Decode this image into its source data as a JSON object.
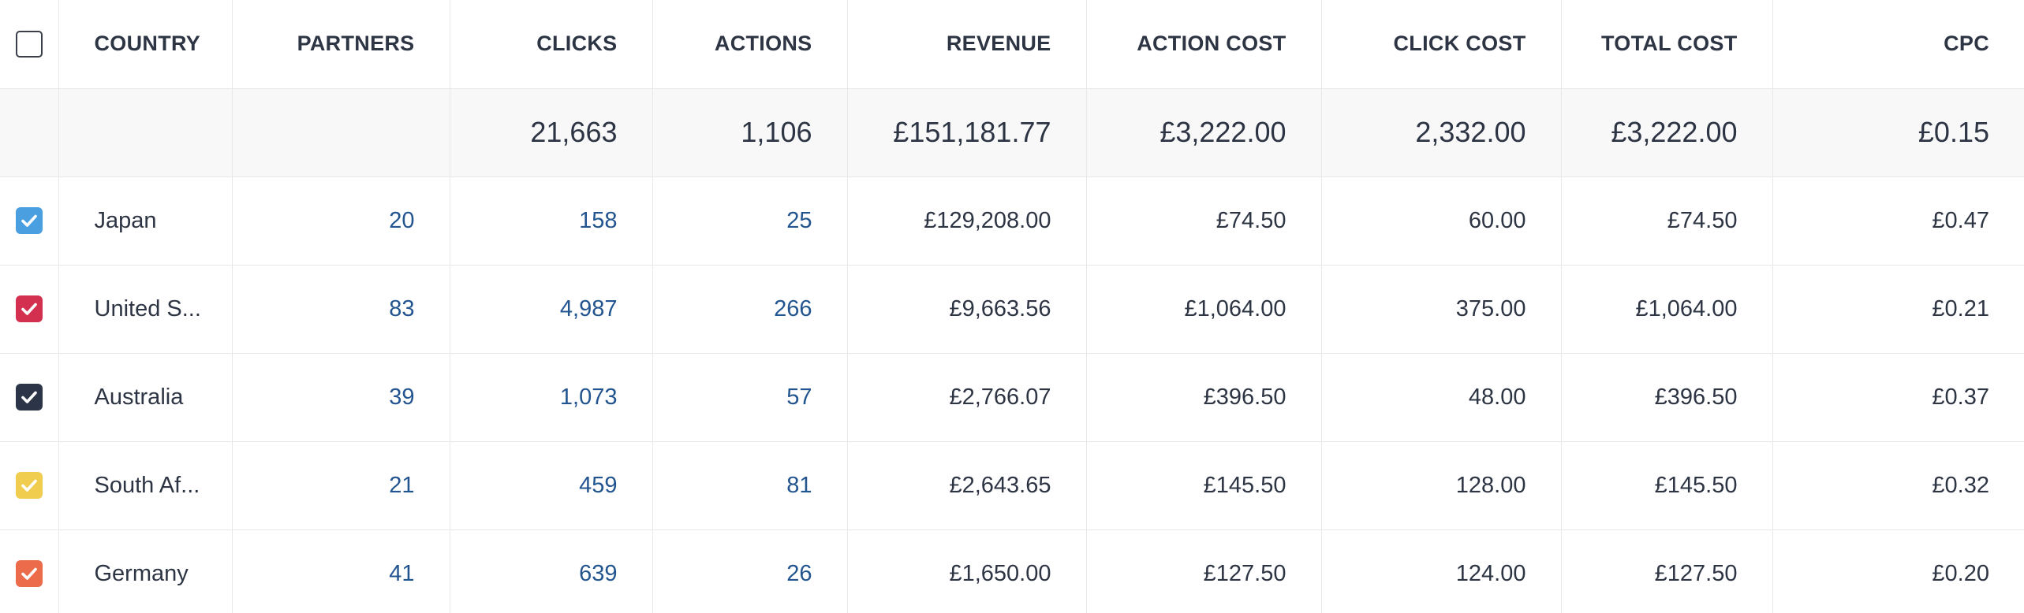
{
  "table": {
    "headers": {
      "country": "COUNTRY",
      "partners": "PARTNERS",
      "clicks": "CLICKS",
      "actions": "ACTIONS",
      "revenue": "REVENUE",
      "action_cost": "ACTION COST",
      "click_cost": "CLICK COST",
      "total_cost": "TOTAL COST",
      "cpc": "CPC"
    },
    "totals": {
      "clicks": "21,663",
      "actions": "1,106",
      "revenue": "£151,181.77",
      "action_cost": "£3,222.00",
      "click_cost": "2,332.00",
      "total_cost": "£3,222.00",
      "cpc": "£0.15"
    },
    "rows": [
      {
        "country": "Japan",
        "partners": "20",
        "clicks": "158",
        "actions": "25",
        "revenue": "£129,208.00",
        "action_cost": "£74.50",
        "click_cost": "60.00",
        "total_cost": "£74.50",
        "cpc": "£0.47",
        "color": "#4a9fe0",
        "checked": true
      },
      {
        "country": "United S...",
        "partners": "83",
        "clicks": "4,987",
        "actions": "266",
        "revenue": "£9,663.56",
        "action_cost": "£1,064.00",
        "click_cost": "375.00",
        "total_cost": "£1,064.00",
        "cpc": "£0.21",
        "color": "#d3304f",
        "checked": true
      },
      {
        "country": "Australia",
        "partners": "39",
        "clicks": "1,073",
        "actions": "57",
        "revenue": "£2,766.07",
        "action_cost": "£396.50",
        "click_cost": "48.00",
        "total_cost": "£396.50",
        "cpc": "£0.37",
        "color": "#2c3547",
        "checked": true
      },
      {
        "country": "South Af...",
        "partners": "21",
        "clicks": "459",
        "actions": "81",
        "revenue": "£2,643.65",
        "action_cost": "£145.50",
        "click_cost": "128.00",
        "total_cost": "£145.50",
        "cpc": "£0.32",
        "color": "#f0cd4e",
        "checked": true
      },
      {
        "country": "Germany",
        "partners": "41",
        "clicks": "639",
        "actions": "26",
        "revenue": "£1,650.00",
        "action_cost": "£127.50",
        "click_cost": "124.00",
        "total_cost": "£127.50",
        "cpc": "£0.20",
        "color": "#ec6b4b",
        "checked": true
      }
    ]
  },
  "icons": {
    "header_checkbox": "checkbox-empty-icon",
    "row_checkbox": "checkbox-checked-icon"
  }
}
